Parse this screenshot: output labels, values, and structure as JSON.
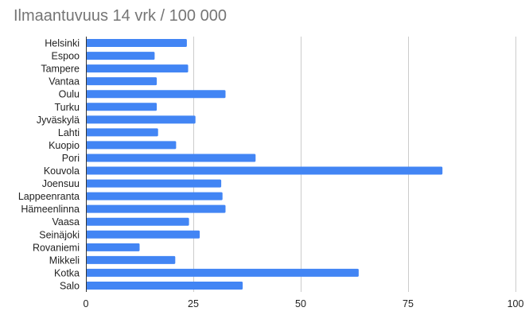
{
  "chart_data": {
    "type": "bar",
    "orientation": "horizontal",
    "title": "Ilmaantuvuus 14 vrk / 100 000",
    "xlabel": "",
    "ylabel": "",
    "categories": [
      "Helsinki",
      "Espoo",
      "Tampere",
      "Vantaa",
      "Oulu",
      "Turku",
      "Jyväskylä",
      "Lahti",
      "Kuopio",
      "Pori",
      "Kouvola",
      "Joensuu",
      "Lappeenranta",
      "Hämeenlinna",
      "Vaasa",
      "Seinäjoki",
      "Rovaniemi",
      "Mikkeli",
      "Kotka",
      "Salo"
    ],
    "values": [
      23.5,
      16,
      23.8,
      16.5,
      32.5,
      16.5,
      25.5,
      16.8,
      21,
      39.5,
      83,
      31.5,
      31.8,
      32.5,
      24,
      26.5,
      12.5,
      20.8,
      63.5,
      36.5
    ],
    "xlim": [
      0,
      100
    ],
    "xticks": [
      0,
      25,
      50,
      75,
      100
    ],
    "xtick_labels": [
      "0",
      "25",
      "50",
      "75",
      "100"
    ],
    "grid": true,
    "legend": "none",
    "bar_color": "#4285f4",
    "grid_color": "#cccccc",
    "axis_color": "#333333"
  }
}
